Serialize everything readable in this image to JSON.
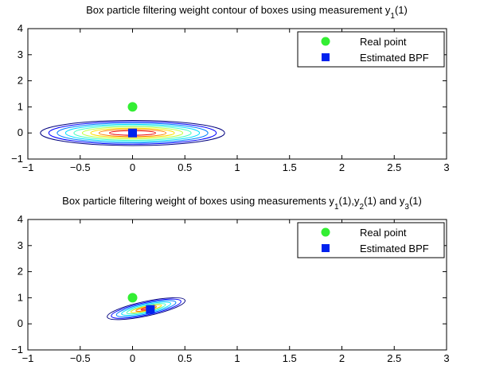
{
  "chart_data": [
    {
      "type": "contour",
      "title": "Box particle filtering weight contour of boxes using measurement y",
      "title_sub": "1",
      "title_tail": "(1)",
      "xlim": [
        -1,
        3
      ],
      "ylim": [
        -1,
        4
      ],
      "xticks": [
        "−1",
        "−0.5",
        "0",
        "0.5",
        "1",
        "1.5",
        "2",
        "2.5",
        "3"
      ],
      "xtick_values": [
        -1,
        -0.5,
        0,
        0.5,
        1,
        1.5,
        2,
        2.5,
        3
      ],
      "yticks": [
        "−1",
        "0",
        "1",
        "2",
        "3",
        "4"
      ],
      "ytick_values": [
        -1,
        0,
        1,
        2,
        3,
        4
      ],
      "legend_position": "top-right",
      "series": [
        {
          "name": "Real point",
          "x": [
            0
          ],
          "y": [
            1
          ],
          "color": "#33ee33",
          "marker": "circle"
        },
        {
          "name": "Estimated BPF",
          "x": [
            0
          ],
          "y": [
            0
          ],
          "color": "#0022ee",
          "marker": "square"
        }
      ],
      "contours": {
        "center": [
          0,
          0
        ],
        "tilt_deg": 0,
        "levels": [
          {
            "rx": 0.88,
            "ry": 0.48,
            "color": "#00007f"
          },
          {
            "rx": 0.8,
            "ry": 0.43,
            "color": "#0000ff"
          },
          {
            "rx": 0.72,
            "ry": 0.38,
            "color": "#007fff"
          },
          {
            "rx": 0.64,
            "ry": 0.33,
            "color": "#00dfff"
          },
          {
            "rx": 0.56,
            "ry": 0.28,
            "color": "#40ffbf"
          },
          {
            "rx": 0.48,
            "ry": 0.23,
            "color": "#bfff40"
          },
          {
            "rx": 0.4,
            "ry": 0.18,
            "color": "#ffdf00"
          },
          {
            "rx": 0.32,
            "ry": 0.14,
            "color": "#ff7f00"
          },
          {
            "rx": 0.22,
            "ry": 0.09,
            "color": "#ee0000"
          }
        ]
      }
    },
    {
      "type": "contour",
      "title_parts": [
        "Box particle filtering weight of boxes using measurements y",
        "1",
        "(1),y",
        "2",
        "(1) and y",
        "3",
        "(1)"
      ],
      "xlim": [
        -1,
        3
      ],
      "ylim": [
        -1,
        4
      ],
      "xticks": [
        "−1",
        "−0.5",
        "0",
        "0.5",
        "1",
        "1.5",
        "2",
        "2.5",
        "3"
      ],
      "xtick_values": [
        -1,
        -0.5,
        0,
        0.5,
        1,
        1.5,
        2,
        2.5,
        3
      ],
      "yticks": [
        "−1",
        "0",
        "1",
        "2",
        "3",
        "4"
      ],
      "ytick_values": [
        -1,
        0,
        1,
        2,
        3,
        4
      ],
      "legend_position": "top-right",
      "series": [
        {
          "name": "Real point",
          "x": [
            0
          ],
          "y": [
            1
          ],
          "color": "#33ee33",
          "marker": "circle"
        },
        {
          "name": "Estimated BPF",
          "x": [
            0.17
          ],
          "y": [
            0.55
          ],
          "color": "#0022ee",
          "marker": "square"
        }
      ],
      "contours": {
        "center": [
          0.13,
          0.58
        ],
        "tilt_deg": -12,
        "levels": [
          {
            "rx": 0.38,
            "ry": 0.28,
            "color": "#00007f"
          },
          {
            "rx": 0.34,
            "ry": 0.24,
            "color": "#0000ff"
          },
          {
            "rx": 0.29,
            "ry": 0.2,
            "color": "#007fff"
          },
          {
            "rx": 0.24,
            "ry": 0.16,
            "color": "#00dfff"
          },
          {
            "rx": 0.19,
            "ry": 0.12,
            "color": "#40ffbf"
          },
          {
            "rx": 0.15,
            "ry": 0.09,
            "color": "#ffdf00"
          },
          {
            "rx": 0.1,
            "ry": 0.06,
            "color": "#ff7f00"
          },
          {
            "rx": 0.05,
            "ry": 0.03,
            "color": "#ee0000"
          }
        ]
      }
    }
  ]
}
